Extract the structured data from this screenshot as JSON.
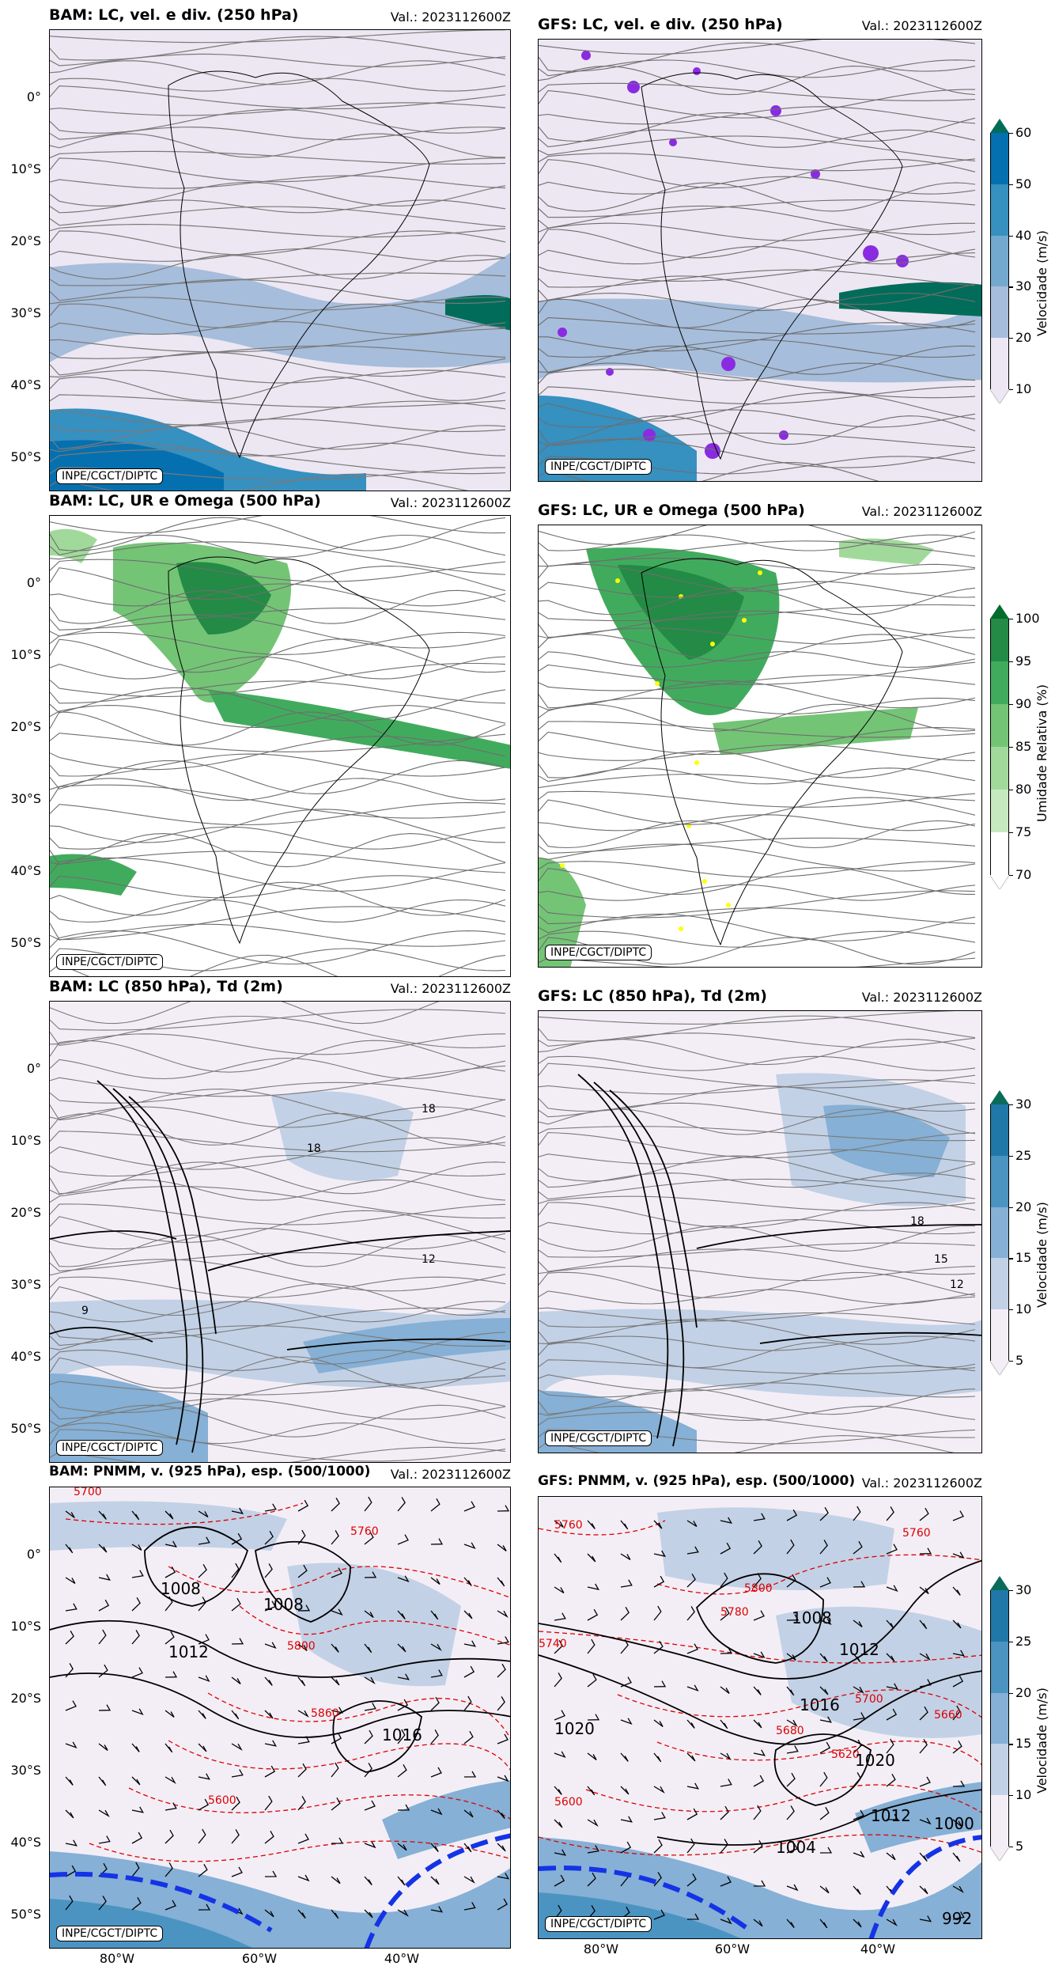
{
  "panels": {
    "p1": {
      "title": "BAM: LC, vel. e div. (250 hPa)",
      "valid": "Val.: 2023112600Z",
      "credit": "INPE/CGCT/DIPTC"
    },
    "p2": {
      "title": "GFS: LC, vel. e div. (250 hPa)",
      "valid": "Val.: 2023112600Z",
      "credit": "INPE/CGCT/DIPTC"
    },
    "p3": {
      "title": "BAM: LC, UR e Omega (500 hPa)",
      "valid": "Val.: 2023112600Z",
      "credit": "INPE/CGCT/DIPTC"
    },
    "p4": {
      "title": "GFS: LC, UR e Omega (500 hPa)",
      "valid": "Val.: 2023112600Z",
      "credit": "INPE/CGCT/DIPTC"
    },
    "p5": {
      "title": "BAM: LC (850 hPa), Td (2m)",
      "valid": "Val.: 2023112600Z",
      "credit": "INPE/CGCT/DIPTC"
    },
    "p6": {
      "title": "GFS: LC (850 hPa), Td (2m)",
      "valid": "Val.: 2023112600Z",
      "credit": "INPE/CGCT/DIPTC"
    },
    "p7": {
      "title": "BAM: PNMM, v. (925 hPa), esp. (500/1000)",
      "valid": "Val.: 2023112600Z",
      "credit": "INPE/CGCT/DIPTC"
    },
    "p8": {
      "title": "GFS: PNMM, v. (925 hPa), esp. (500/1000)",
      "valid": "Val.: 2023112600Z",
      "credit": "INPE/CGCT/DIPTC"
    }
  },
  "lat_labels": [
    "0°",
    "10°S",
    "20°S",
    "30°S",
    "40°S",
    "50°S"
  ],
  "lon_labels": [
    "80°W",
    "60°W",
    "40°W"
  ],
  "colorbars": {
    "c1": {
      "title": "Velocidade (m/s)",
      "ticks": [
        "10",
        "20",
        "30",
        "40",
        "50",
        "60"
      ],
      "colors": [
        "#ece7f2",
        "#a6bddb",
        "#74a9cf",
        "#3690c0",
        "#0570b0",
        "#016c59"
      ]
    },
    "c2": {
      "title": "Umidade Relativa (%)",
      "ticks": [
        "70",
        "75",
        "80",
        "85",
        "90",
        "95",
        "100"
      ],
      "colors": [
        "#ffffff",
        "#c7e9c0",
        "#a1d99b",
        "#74c476",
        "#41ab5d",
        "#238b45",
        "#006d2c"
      ]
    },
    "c3": {
      "title": "Velocidade (m/s)",
      "ticks": [
        "5",
        "10",
        "15",
        "20",
        "25",
        "30"
      ],
      "colors": [
        "#f3eef6",
        "#c3d1e6",
        "#86b0d5",
        "#4b94c2",
        "#1f78a8",
        "#0a6b5a"
      ]
    },
    "c4": {
      "title": "Velocidade (m/s)",
      "ticks": [
        "5",
        "10",
        "15",
        "20",
        "25",
        "30"
      ],
      "colors": [
        "#f3eef6",
        "#c3d1e6",
        "#86b0d5",
        "#4b94c2",
        "#1f78a8",
        "#0a6b5a"
      ]
    }
  },
  "contour_labels": {
    "p5": [
      "18",
      "12",
      "9",
      "18"
    ],
    "p6": [
      "18",
      "15",
      "12"
    ],
    "p7": [
      "1008",
      "1012",
      "1008",
      "5760",
      "5800",
      "5700",
      "1016",
      "5860",
      "5600"
    ],
    "p8": [
      "5760",
      "5760",
      "5800",
      "5780",
      "1008",
      "1012",
      "5740",
      "1016",
      "5700",
      "5660",
      "1020",
      "5620",
      "5680",
      "5600",
      "1020",
      "1012",
      "1004",
      "1000",
      "992"
    ]
  }
}
